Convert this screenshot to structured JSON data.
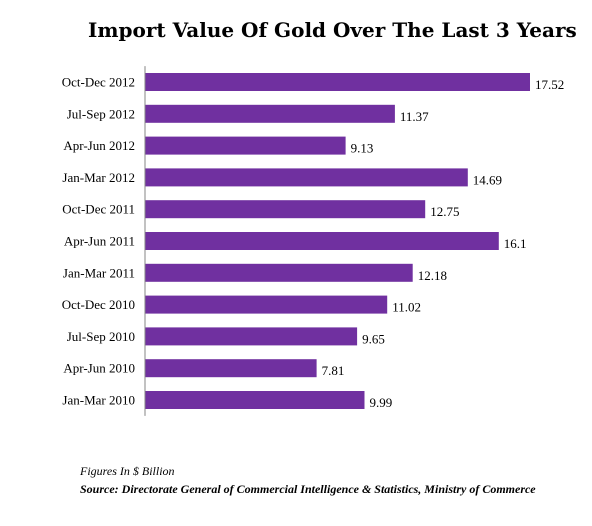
{
  "chart_data": {
    "type": "bar",
    "orientation": "horizontal",
    "title": "Import Value Of Gold Over The Last 3 Years",
    "categories": [
      "Oct-Dec 2012",
      "Jul-Sep 2012",
      "Apr-Jun 2012",
      "Jan-Mar 2012",
      "Oct-Dec 2011",
      "Apr-Jun 2011",
      "Jan-Mar 2011",
      "Oct-Dec 2010",
      "Jul-Sep 2010",
      "Apr-Jun 2010",
      "Jan-Mar 2010"
    ],
    "values": [
      17.52,
      11.37,
      9.13,
      14.69,
      12.75,
      16.1,
      12.18,
      11.02,
      9.65,
      7.81,
      9.99
    ],
    "value_labels": [
      "17.52",
      "11.37",
      "9.13",
      "14.69",
      "12.75",
      "16.1",
      "12.18",
      "11.02",
      "9.65",
      "7.81",
      "9.99"
    ],
    "xlim": [
      0,
      17.52
    ],
    "grid": false,
    "bar_color": "#7030a0",
    "axis_color": "#868686"
  },
  "footer": {
    "note": "Figures In $ Billion",
    "source": "Source: Directorate General of Commercial Intelligence & Statistics, Ministry of Commerce"
  }
}
